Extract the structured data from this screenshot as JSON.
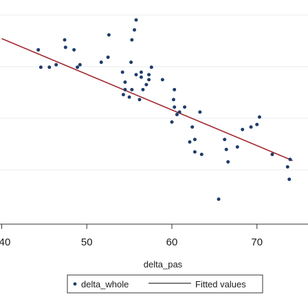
{
  "chart_data": {
    "type": "scatter",
    "title": "",
    "xlabel": "delta_pas",
    "ylabel": "",
    "x_ticks": [
      {
        "value": 40,
        "label": "40"
      },
      {
        "value": 50,
        "label": "50"
      },
      {
        "value": 60,
        "label": "60"
      },
      {
        "value": 70,
        "label": "70"
      }
    ],
    "grid": true,
    "legend_position": "bottom",
    "series": [
      {
        "name": "delta_whole",
        "kind": "scatter",
        "color": "#1f3d6b",
        "points": [
          [
            44.3,
            95
          ],
          [
            44.6,
            88
          ],
          [
            45.6,
            88
          ],
          [
            46.4,
            89
          ],
          [
            49.2,
            89
          ],
          [
            51.7,
            90
          ],
          [
            52.5,
            92
          ],
          [
            55.2,
            90
          ],
          [
            55.3,
            99
          ],
          [
            55.6,
            103
          ],
          [
            55.8,
            107
          ],
          [
            52.6,
            101
          ],
          [
            54.2,
            86
          ],
          [
            54.5,
            82
          ],
          [
            54.5,
            79
          ],
          [
            54.3,
            77
          ],
          [
            55.0,
            76
          ],
          [
            55.3,
            79
          ],
          [
            56.2,
            75
          ],
          [
            55.8,
            85
          ],
          [
            56.4,
            86
          ],
          [
            56.6,
            79
          ],
          [
            56.4,
            84
          ],
          [
            57.3,
            85
          ],
          [
            57.6,
            88
          ],
          [
            57.0,
            81
          ],
          [
            57.3,
            83
          ],
          [
            58.9,
            83
          ],
          [
            60.3,
            79
          ],
          [
            60.2,
            75
          ],
          [
            60.3,
            72
          ],
          [
            60.0,
            66
          ],
          [
            60.6,
            69
          ],
          [
            60.9,
            70
          ],
          [
            61.5,
            72
          ],
          [
            62.1,
            58
          ],
          [
            62.4,
            64
          ],
          [
            62.7,
            59
          ],
          [
            62.7,
            54
          ],
          [
            63.3,
            70
          ],
          [
            66.2,
            59
          ],
          [
            66.4,
            55
          ],
          [
            67.7,
            56
          ],
          [
            68.3,
            63
          ],
          [
            69.3,
            64
          ],
          [
            70.0,
            65
          ],
          [
            70.3,
            68
          ],
          [
            71.8,
            53
          ],
          [
            73.8,
            43
          ],
          [
            73.6,
            48
          ],
          [
            73.9,
            51
          ],
          [
            65.5,
            35
          ],
          [
            63.5,
            53
          ],
          [
            66.6,
            50
          ],
          [
            47.4,
            99
          ],
          [
            47.5,
            96
          ],
          [
            48.5,
            95
          ],
          [
            48.9,
            88
          ]
        ]
      },
      {
        "name": "Fitted values",
        "kind": "line",
        "color": "#a0282e",
        "points": [
          [
            40.0,
            99.5
          ],
          [
            74.2,
            50.5
          ]
        ]
      }
    ],
    "y_range": [
      25,
      115
    ],
    "x_range": [
      39.8,
      76
    ]
  }
}
